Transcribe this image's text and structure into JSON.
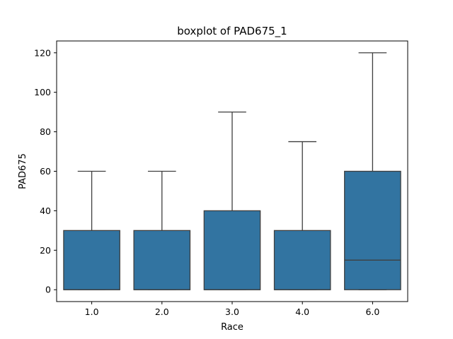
{
  "chart_data": {
    "type": "boxplot",
    "title": "boxplot of PAD675_1",
    "xlabel": "Race",
    "ylabel": "PAD675",
    "categories": [
      "1.0",
      "2.0",
      "3.0",
      "4.0",
      "6.0"
    ],
    "boxes": [
      {
        "category": "1.0",
        "whisker_low": 0,
        "q1": 0,
        "median": 0,
        "q3": 30,
        "whisker_high": 60
      },
      {
        "category": "2.0",
        "whisker_low": 0,
        "q1": 0,
        "median": 0,
        "q3": 30,
        "whisker_high": 60
      },
      {
        "category": "3.0",
        "whisker_low": 0,
        "q1": 0,
        "median": 0,
        "q3": 40,
        "whisker_high": 90
      },
      {
        "category": "4.0",
        "whisker_low": 0,
        "q1": 0,
        "median": 0,
        "q3": 30,
        "whisker_high": 75
      },
      {
        "category": "6.0",
        "whisker_low": 0,
        "q1": 0,
        "median": 15,
        "q3": 60,
        "whisker_high": 120
      }
    ],
    "ylim": [
      -6,
      126
    ],
    "yticks": [
      "0",
      "20",
      "40",
      "60",
      "80",
      "100",
      "120"
    ],
    "grid": false,
    "legend": "none",
    "colors": {
      "box_fill": "#3274a1",
      "box_edge": "#3f3f3f",
      "axis": "#000000"
    }
  }
}
